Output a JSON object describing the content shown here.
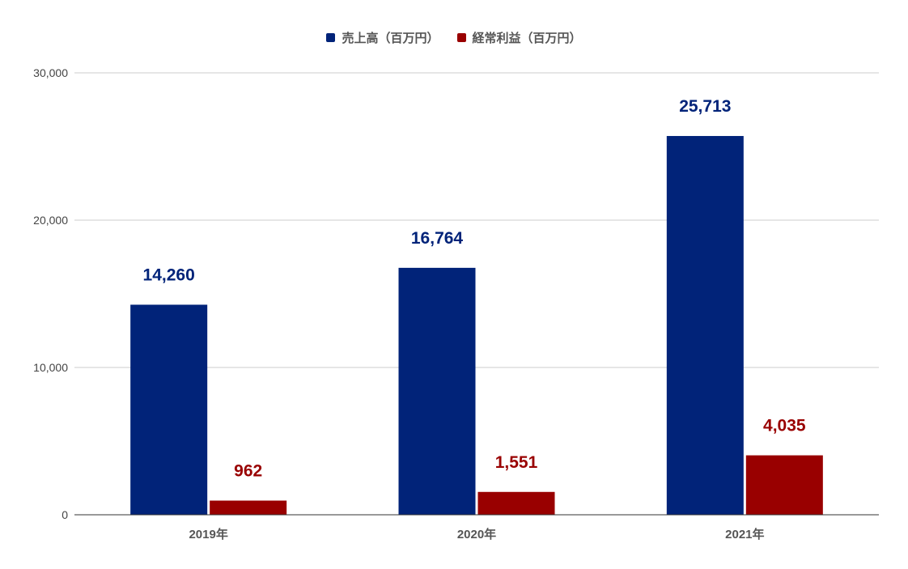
{
  "chart_data": {
    "type": "bar",
    "categories": [
      "2019年",
      "2020年",
      "2021年"
    ],
    "series": [
      {
        "name": "売上高（百万円）",
        "values": [
          14260,
          16764,
          25713
        ],
        "labels": [
          "14,260",
          "16,764",
          "25,713"
        ],
        "color": "#012379"
      },
      {
        "name": "経常利益（百万円）",
        "values": [
          962,
          1551,
          4035
        ],
        "labels": [
          "962",
          "1,551",
          "4,035"
        ],
        "color": "#990000"
      }
    ],
    "y_ticks": [
      "0",
      "10,000",
      "20,000",
      "30,000"
    ],
    "y_tick_values": [
      0,
      10000,
      20000,
      30000
    ],
    "ylim": [
      0,
      30000
    ],
    "grid": true,
    "legend_position": "top-center",
    "title": "",
    "xlabel": "",
    "ylabel": ""
  }
}
